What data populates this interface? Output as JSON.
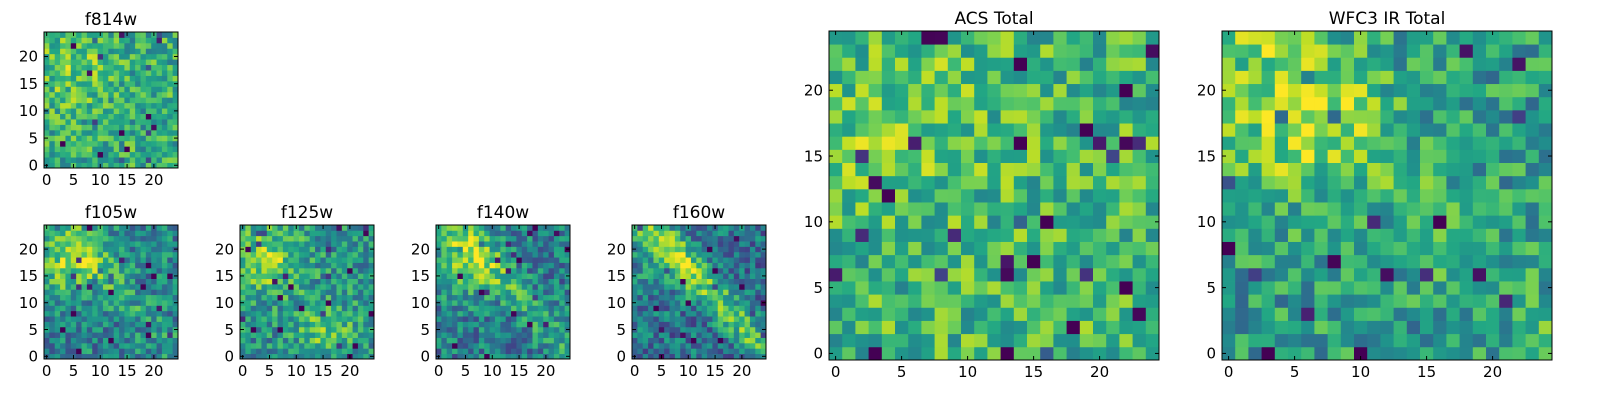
{
  "figure": {
    "colormap": "viridis",
    "colors": {
      "low": "#440154",
      "mid": "#21918c",
      "high": "#fde725",
      "frame": "#000000",
      "background": "#ffffff"
    }
  },
  "chart_data": [
    {
      "id": "f814w",
      "type": "heatmap",
      "title": "f814w",
      "grid_size": 25,
      "xlim": [
        0,
        24
      ],
      "ylim": [
        0,
        24
      ],
      "xticks": [
        "0",
        "5",
        "10",
        "15",
        "20"
      ],
      "yticks": [
        "0",
        "5",
        "10",
        "15",
        "20"
      ],
      "values": [],
      "structure": "noisy field, brighter toward upper-left, a few dark pixels lower-left"
    },
    {
      "id": "f105w",
      "type": "heatmap",
      "title": "f105w",
      "grid_size": 25,
      "xlim": [
        0,
        24
      ],
      "ylim": [
        0,
        24
      ],
      "xticks": [
        "0",
        "5",
        "10",
        "15",
        "20"
      ],
      "yticks": [
        "0",
        "5",
        "10",
        "15",
        "20"
      ],
      "values": [],
      "structure": "bright diagonal band upper-left, darker patches lower edge"
    },
    {
      "id": "f125w",
      "type": "heatmap",
      "title": "f125w",
      "grid_size": 25,
      "xlim": [
        0,
        24
      ],
      "ylim": [
        0,
        24
      ],
      "xticks": [
        "0",
        "5",
        "10",
        "15",
        "20"
      ],
      "yticks": [
        "0",
        "5",
        "10",
        "15",
        "20"
      ],
      "values": [],
      "structure": "bright upper-left and lower-center lobes"
    },
    {
      "id": "f140w",
      "type": "heatmap",
      "title": "f140w",
      "grid_size": 25,
      "xlim": [
        0,
        24
      ],
      "ylim": [
        0,
        24
      ],
      "xticks": [
        "0",
        "5",
        "10",
        "15",
        "20"
      ],
      "yticks": [
        "0",
        "5",
        "10",
        "15",
        "20"
      ],
      "values": [],
      "structure": "bright diagonal band, dark pixels upper-right"
    },
    {
      "id": "f160w",
      "type": "heatmap",
      "title": "f160w",
      "grid_size": 25,
      "xlim": [
        0,
        24
      ],
      "ylim": [
        0,
        24
      ],
      "xticks": [
        "0",
        "5",
        "10",
        "15",
        "20"
      ],
      "yticks": [
        "0",
        "5",
        "10",
        "15",
        "20"
      ],
      "values": [],
      "structure": "strong diagonal bright band from upper-left to center, darker right side"
    },
    {
      "id": "acs_total",
      "type": "heatmap",
      "title": "ACS Total",
      "grid_size": 25,
      "xlim": [
        0,
        24
      ],
      "ylim": [
        0,
        24
      ],
      "xticks": [
        "0",
        "5",
        "10",
        "15",
        "20"
      ],
      "yticks": [
        "0",
        "5",
        "10",
        "15",
        "20"
      ],
      "values": [],
      "structure": "mostly green-yellow blocky field, dark pixels lower-left and upper-right"
    },
    {
      "id": "wfc3_ir_total",
      "type": "heatmap",
      "title": "WFC3 IR Total",
      "grid_size": 25,
      "xlim": [
        0,
        24
      ],
      "ylim": [
        0,
        24
      ],
      "xticks": [
        "0",
        "5",
        "10",
        "15",
        "20"
      ],
      "yticks": [
        "0",
        "5",
        "10",
        "15",
        "20"
      ],
      "values": [],
      "structure": "bright region upper-left/center, darker scattered pixels on the right"
    }
  ]
}
